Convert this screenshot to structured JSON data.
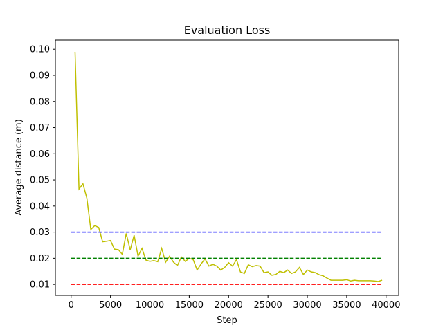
{
  "chart_data": {
    "type": "line",
    "title": "Evaluation Loss",
    "xlabel": "Step",
    "ylabel": "Average distance (m)",
    "xlim": [
      -2000,
      41600
    ],
    "ylim": [
      0.0058,
      0.1035
    ],
    "xticks": [
      0,
      5000,
      10000,
      15000,
      20000,
      25000,
      30000,
      35000,
      40000
    ],
    "yticks": [
      0.01,
      0.02,
      0.03,
      0.04,
      0.05,
      0.06,
      0.07,
      0.08,
      0.09,
      0.1
    ],
    "xtick_labels": [
      "0",
      "5000",
      "10000",
      "15000",
      "20000",
      "25000",
      "30000",
      "35000",
      "40000"
    ],
    "ytick_labels": [
      "0.01",
      "0.02",
      "0.03",
      "0.04",
      "0.05",
      "0.06",
      "0.07",
      "0.08",
      "0.09",
      "0.10"
    ],
    "grid": false,
    "series": [
      {
        "color": "#bfbf00",
        "style": "solid",
        "x": [
          500,
          1000,
          1500,
          2000,
          2500,
          3000,
          3500,
          4000,
          4500,
          5000,
          5500,
          6000,
          6500,
          7000,
          7500,
          8000,
          8500,
          9000,
          9500,
          10000,
          10500,
          11000,
          11500,
          12000,
          12500,
          13000,
          13500,
          14000,
          14500,
          15000,
          15500,
          16000,
          16500,
          17000,
          17500,
          18000,
          18500,
          19000,
          19500,
          20000,
          20500,
          21000,
          21500,
          22000,
          22500,
          23000,
          23500,
          24000,
          24500,
          25000,
          25500,
          26000,
          26500,
          27000,
          27500,
          28000,
          28500,
          29000,
          29500,
          30000,
          30500,
          31000,
          31500,
          32000,
          32500,
          33000,
          33500,
          34000,
          34500,
          35000,
          35500,
          36000,
          36500,
          37000,
          37500,
          38000,
          38500,
          39000,
          39500
        ],
        "y": [
          0.099,
          0.0465,
          0.0485,
          0.043,
          0.031,
          0.0325,
          0.0318,
          0.0263,
          0.0265,
          0.0268,
          0.0235,
          0.0233,
          0.0215,
          0.0295,
          0.0232,
          0.0288,
          0.0208,
          0.0238,
          0.0193,
          0.0188,
          0.0191,
          0.0187,
          0.0238,
          0.0185,
          0.0208,
          0.0185,
          0.0172,
          0.0205,
          0.0188,
          0.02,
          0.0195,
          0.0155,
          0.0178,
          0.0198,
          0.017,
          0.0177,
          0.017,
          0.0155,
          0.0165,
          0.0183,
          0.017,
          0.0195,
          0.0148,
          0.0142,
          0.0175,
          0.0168,
          0.0172,
          0.017,
          0.0145,
          0.0148,
          0.0135,
          0.0138,
          0.015,
          0.0145,
          0.0155,
          0.0142,
          0.0148,
          0.0165,
          0.0138,
          0.0155,
          0.0148,
          0.0145,
          0.0137,
          0.0133,
          0.0124,
          0.0116,
          0.0116,
          0.0116,
          0.0116,
          0.0118,
          0.0113,
          0.0116,
          0.0114,
          0.0114,
          0.0114,
          0.0114,
          0.0113,
          0.0111,
          0.0116
        ]
      },
      {
        "color": "#0000ff",
        "style": "dashed",
        "x": [
          0,
          39500
        ],
        "y": [
          0.03,
          0.03
        ]
      },
      {
        "color": "#008000",
        "style": "dashed",
        "x": [
          0,
          39500
        ],
        "y": [
          0.02,
          0.02
        ]
      },
      {
        "color": "#ff0000",
        "style": "dashed",
        "x": [
          0,
          39500
        ],
        "y": [
          0.01,
          0.01
        ]
      }
    ]
  }
}
